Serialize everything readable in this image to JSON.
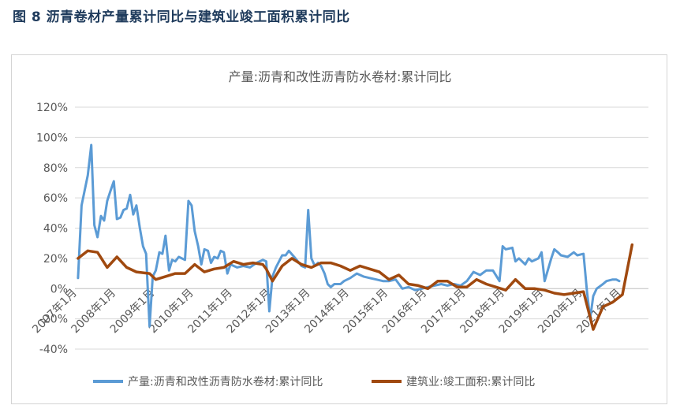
{
  "figure_title": "图 8  沥青卷材产量累计同比与建筑业竣工面积累计同比",
  "chart_data": {
    "type": "line",
    "title": "产量:沥青和改性沥青防水卷材:累计同比",
    "xlabel": "",
    "ylabel": "",
    "ylim": [
      -40,
      120
    ],
    "yticks": [
      "-40%",
      "-20%",
      "0%",
      "20%",
      "40%",
      "60%",
      "80%",
      "100%",
      "120%"
    ],
    "ytick_values": [
      -40,
      -20,
      0,
      20,
      40,
      60,
      80,
      100,
      120
    ],
    "xlim": [
      2007.0,
      2021.75
    ],
    "xticks": [
      "2007年1月",
      "2008年1月",
      "2009年1月",
      "2010年1月",
      "2011年1月",
      "2012年1月",
      "2013年1月",
      "2014年1月",
      "2015年1月",
      "2016年1月",
      "2017年1月",
      "2018年1月",
      "2019年1月",
      "2020年1月",
      "2021年1月"
    ],
    "xtick_values": [
      2007,
      2008,
      2009,
      2010,
      2011,
      2012,
      2013,
      2014,
      2015,
      2016,
      2017,
      2018,
      2019,
      2020,
      2021
    ],
    "grid": true,
    "legend": "bottom",
    "series": [
      {
        "name": "产量:沥青和改性沥青防水卷材:累计同比",
        "color": "#5b9bd5",
        "points": [
          [
            2007.08,
            7
          ],
          [
            2007.17,
            55
          ],
          [
            2007.33,
            75
          ],
          [
            2007.42,
            95
          ],
          [
            2007.5,
            42
          ],
          [
            2007.58,
            34
          ],
          [
            2007.67,
            48
          ],
          [
            2007.75,
            45
          ],
          [
            2007.83,
            58
          ],
          [
            2007.92,
            65
          ],
          [
            2008.0,
            71
          ],
          [
            2008.08,
            46
          ],
          [
            2008.17,
            47
          ],
          [
            2008.25,
            52
          ],
          [
            2008.33,
            53
          ],
          [
            2008.42,
            62
          ],
          [
            2008.5,
            49
          ],
          [
            2008.58,
            55
          ],
          [
            2008.67,
            40
          ],
          [
            2008.75,
            28
          ],
          [
            2008.83,
            23
          ],
          [
            2008.92,
            -25
          ],
          [
            2009.0,
            8
          ],
          [
            2009.08,
            12
          ],
          [
            2009.17,
            24
          ],
          [
            2009.25,
            23
          ],
          [
            2009.33,
            35
          ],
          [
            2009.42,
            12
          ],
          [
            2009.5,
            19
          ],
          [
            2009.58,
            18
          ],
          [
            2009.67,
            21
          ],
          [
            2009.75,
            20
          ],
          [
            2009.83,
            19
          ],
          [
            2009.92,
            58
          ],
          [
            2010.0,
            55
          ],
          [
            2010.08,
            38
          ],
          [
            2010.17,
            28
          ],
          [
            2010.25,
            16
          ],
          [
            2010.33,
            26
          ],
          [
            2010.42,
            25
          ],
          [
            2010.5,
            17
          ],
          [
            2010.58,
            21
          ],
          [
            2010.67,
            20
          ],
          [
            2010.75,
            25
          ],
          [
            2010.83,
            24
          ],
          [
            2010.92,
            10
          ],
          [
            2011.0,
            16
          ],
          [
            2011.17,
            14
          ],
          [
            2011.33,
            15
          ],
          [
            2011.5,
            14
          ],
          [
            2011.67,
            17
          ],
          [
            2011.83,
            19
          ],
          [
            2011.92,
            18
          ],
          [
            2012.0,
            -15
          ],
          [
            2012.08,
            8
          ],
          [
            2012.17,
            14
          ],
          [
            2012.33,
            22
          ],
          [
            2012.42,
            22
          ],
          [
            2012.5,
            25
          ],
          [
            2012.67,
            20
          ],
          [
            2012.83,
            15
          ],
          [
            2012.92,
            14
          ],
          [
            2013.0,
            52
          ],
          [
            2013.08,
            20
          ],
          [
            2013.17,
            15
          ],
          [
            2013.25,
            17
          ],
          [
            2013.33,
            15
          ],
          [
            2013.42,
            10
          ],
          [
            2013.5,
            3
          ],
          [
            2013.58,
            1
          ],
          [
            2013.67,
            3
          ],
          [
            2013.83,
            3
          ],
          [
            2013.92,
            5
          ],
          [
            2014.08,
            7
          ],
          [
            2014.25,
            10
          ],
          [
            2014.42,
            8
          ],
          [
            2014.58,
            7
          ],
          [
            2014.75,
            6
          ],
          [
            2014.92,
            5
          ],
          [
            2015.08,
            5
          ],
          [
            2015.25,
            6
          ],
          [
            2015.42,
            0
          ],
          [
            2015.58,
            1
          ],
          [
            2015.75,
            -1
          ],
          [
            2015.92,
            0
          ],
          [
            2016.08,
            1
          ],
          [
            2016.25,
            2
          ],
          [
            2016.42,
            3
          ],
          [
            2016.58,
            2
          ],
          [
            2016.75,
            3
          ],
          [
            2016.92,
            2
          ],
          [
            2017.08,
            5
          ],
          [
            2017.25,
            11
          ],
          [
            2017.42,
            9
          ],
          [
            2017.58,
            12
          ],
          [
            2017.75,
            12
          ],
          [
            2017.92,
            5
          ],
          [
            2018.0,
            28
          ],
          [
            2018.08,
            26
          ],
          [
            2018.25,
            27
          ],
          [
            2018.33,
            18
          ],
          [
            2018.42,
            20
          ],
          [
            2018.58,
            16
          ],
          [
            2018.67,
            20
          ],
          [
            2018.75,
            18
          ],
          [
            2018.92,
            20
          ],
          [
            2019.0,
            24
          ],
          [
            2019.08,
            5
          ],
          [
            2019.25,
            20
          ],
          [
            2019.33,
            26
          ],
          [
            2019.42,
            24
          ],
          [
            2019.5,
            22
          ],
          [
            2019.67,
            21
          ],
          [
            2019.83,
            24
          ],
          [
            2019.92,
            22
          ],
          [
            2020.08,
            23
          ],
          [
            2020.17,
            -2
          ],
          [
            2020.25,
            -20
          ],
          [
            2020.33,
            -5
          ],
          [
            2020.42,
            0
          ],
          [
            2020.58,
            3
          ],
          [
            2020.67,
            5
          ],
          [
            2020.83,
            6
          ],
          [
            2020.92,
            6
          ],
          [
            2021.0,
            5
          ]
        ]
      },
      {
        "name": "建筑业:竣工面积:累计同比",
        "color": "#a0490f",
        "points": [
          [
            2007.08,
            20
          ],
          [
            2007.33,
            25
          ],
          [
            2007.58,
            24
          ],
          [
            2007.83,
            14
          ],
          [
            2008.08,
            21
          ],
          [
            2008.33,
            14
          ],
          [
            2008.58,
            11
          ],
          [
            2008.92,
            10
          ],
          [
            2009.08,
            6
          ],
          [
            2009.33,
            8
          ],
          [
            2009.58,
            10
          ],
          [
            2009.83,
            10
          ],
          [
            2010.08,
            16
          ],
          [
            2010.33,
            11
          ],
          [
            2010.58,
            13
          ],
          [
            2010.83,
            14
          ],
          [
            2011.08,
            18
          ],
          [
            2011.33,
            16
          ],
          [
            2011.58,
            17
          ],
          [
            2011.83,
            16
          ],
          [
            2011.92,
            13
          ],
          [
            2012.08,
            5
          ],
          [
            2012.33,
            15
          ],
          [
            2012.58,
            20
          ],
          [
            2012.83,
            16
          ],
          [
            2013.08,
            14
          ],
          [
            2013.33,
            17
          ],
          [
            2013.58,
            17
          ],
          [
            2013.83,
            15
          ],
          [
            2014.08,
            12
          ],
          [
            2014.33,
            15
          ],
          [
            2014.58,
            13
          ],
          [
            2014.83,
            11
          ],
          [
            2015.08,
            6
          ],
          [
            2015.33,
            9
          ],
          [
            2015.58,
            3
          ],
          [
            2015.83,
            2
          ],
          [
            2016.08,
            0
          ],
          [
            2016.33,
            5
          ],
          [
            2016.58,
            5
          ],
          [
            2016.83,
            1
          ],
          [
            2017.08,
            1
          ],
          [
            2017.33,
            6
          ],
          [
            2017.58,
            3
          ],
          [
            2017.83,
            1
          ],
          [
            2018.08,
            -1
          ],
          [
            2018.33,
            6
          ],
          [
            2018.58,
            0
          ],
          [
            2018.83,
            0
          ],
          [
            2019.08,
            -1
          ],
          [
            2019.33,
            -3
          ],
          [
            2019.58,
            -4
          ],
          [
            2019.83,
            -3
          ],
          [
            2020.08,
            -2
          ],
          [
            2020.33,
            -27
          ],
          [
            2020.58,
            -12
          ],
          [
            2020.83,
            -9
          ],
          [
            2021.08,
            -4
          ],
          [
            2021.33,
            29
          ]
        ]
      }
    ]
  }
}
